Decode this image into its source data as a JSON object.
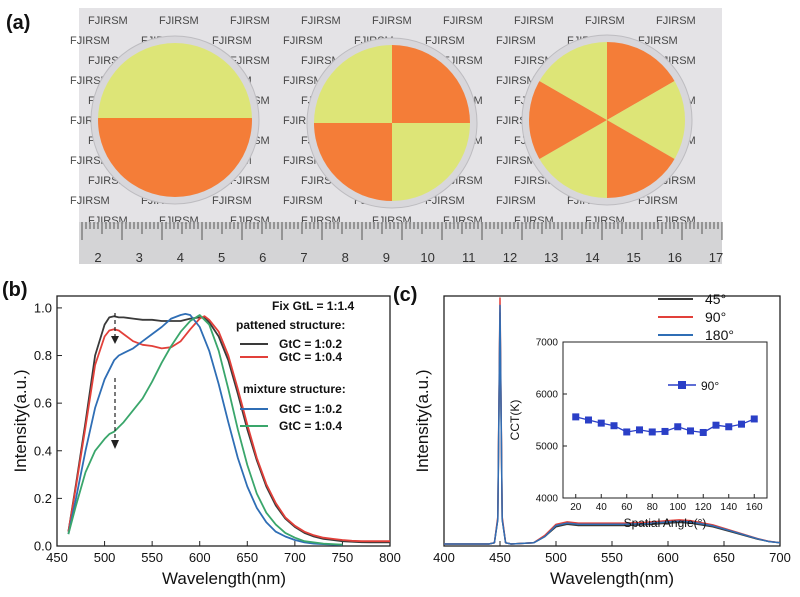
{
  "panel_a": {
    "label": "(a)",
    "watermark_text": "FJIRSM",
    "ruler_numbers": [
      "2",
      "3",
      "4",
      "5",
      "6",
      "7",
      "8",
      "9",
      "10",
      "11",
      "12",
      "13",
      "14",
      "15",
      "16",
      "17"
    ],
    "colors": {
      "yellow": "#dde66f",
      "orange": "#f6752a",
      "paper": "#e4e3e6",
      "ruler": "#d2d1d4"
    }
  },
  "chart_data": [
    {
      "panel_label": "(b)",
      "type": "line",
      "xlabel": "Wavelength(nm)",
      "ylabel": "Intensity(a.u.)",
      "xlim": [
        450,
        800
      ],
      "ylim": [
        0,
        1.05
      ],
      "x_ticks": [
        450,
        500,
        550,
        600,
        650,
        700,
        750,
        800
      ],
      "y_ticks": [
        0.0,
        0.2,
        0.4,
        0.6,
        0.8,
        1.0
      ],
      "x_tick_labels": [
        "450",
        "500",
        "550",
        "600",
        "650",
        "700",
        "750",
        "800"
      ],
      "y_tick_labels": [
        "0.0",
        "0.2",
        "0.4",
        "0.6",
        "0.8",
        "1.0"
      ],
      "legend": {
        "header": "Fix GtL = 1:1.4",
        "group1_title": "pattened structure:",
        "group2_title": "mixture structure:",
        "placement": "top-right"
      },
      "series": [
        {
          "name": "GtC = 1:0.2",
          "group": "pattened structure:",
          "color": "#3a3a3a",
          "x": [
            462,
            470,
            480,
            490,
            500,
            505,
            510,
            515,
            520,
            530,
            540,
            550,
            560,
            570,
            580,
            590,
            600,
            605,
            610,
            620,
            630,
            640,
            650,
            660,
            670,
            680,
            690,
            700,
            710,
            720,
            730,
            740,
            750,
            760,
            770,
            780,
            790,
            800
          ],
          "y": [
            0.06,
            0.26,
            0.52,
            0.8,
            0.93,
            0.96,
            0.965,
            0.96,
            0.96,
            0.955,
            0.95,
            0.95,
            0.945,
            0.945,
            0.945,
            0.955,
            0.96,
            0.96,
            0.94,
            0.88,
            0.78,
            0.64,
            0.49,
            0.36,
            0.25,
            0.17,
            0.115,
            0.08,
            0.055,
            0.04,
            0.03,
            0.025,
            0.02,
            0.018,
            0.016,
            0.015,
            0.015,
            0.015
          ]
        },
        {
          "name": "GtC = 1:0.4",
          "group": "pattened structure:",
          "color": "#e2403a",
          "x": [
            462,
            470,
            480,
            490,
            500,
            505,
            510,
            515,
            520,
            530,
            540,
            550,
            560,
            570,
            580,
            590,
            600,
            605,
            610,
            620,
            630,
            640,
            650,
            660,
            670,
            680,
            690,
            700,
            710,
            720,
            730,
            740,
            750,
            760,
            770,
            780,
            790,
            800
          ],
          "y": [
            0.06,
            0.25,
            0.5,
            0.76,
            0.88,
            0.905,
            0.91,
            0.905,
            0.89,
            0.86,
            0.845,
            0.84,
            0.83,
            0.835,
            0.86,
            0.91,
            0.955,
            0.965,
            0.95,
            0.9,
            0.8,
            0.66,
            0.51,
            0.37,
            0.26,
            0.18,
            0.12,
            0.085,
            0.06,
            0.045,
            0.035,
            0.03,
            0.025,
            0.022,
            0.02,
            0.02,
            0.02,
            0.02
          ]
        },
        {
          "name": "GtC = 1:0.2",
          "group": "mixture structure:",
          "color": "#2f6eb5",
          "x": [
            462,
            470,
            480,
            490,
            500,
            510,
            515,
            520,
            530,
            540,
            550,
            560,
            570,
            580,
            585,
            590,
            600,
            610,
            620,
            630,
            640,
            650,
            660,
            670,
            680,
            690,
            700,
            710,
            720,
            730,
            740,
            750
          ],
          "y": [
            0.05,
            0.2,
            0.4,
            0.58,
            0.7,
            0.78,
            0.8,
            0.81,
            0.83,
            0.86,
            0.89,
            0.92,
            0.955,
            0.97,
            0.975,
            0.97,
            0.92,
            0.82,
            0.68,
            0.52,
            0.37,
            0.25,
            0.16,
            0.1,
            0.06,
            0.04,
            0.025,
            0.015,
            0.01,
            0.008,
            0.006,
            0.005
          ]
        },
        {
          "name": "GtC = 1:0.4",
          "group": "mixture structure:",
          "color": "#3aa66b",
          "x": [
            462,
            470,
            480,
            490,
            500,
            505,
            510,
            515,
            520,
            530,
            540,
            550,
            560,
            570,
            580,
            590,
            600,
            610,
            620,
            630,
            640,
            650,
            660,
            670,
            680,
            690,
            700,
            710,
            720,
            730,
            740,
            750
          ],
          "y": [
            0.05,
            0.17,
            0.31,
            0.4,
            0.45,
            0.47,
            0.48,
            0.5,
            0.52,
            0.57,
            0.62,
            0.69,
            0.77,
            0.84,
            0.9,
            0.945,
            0.97,
            0.93,
            0.82,
            0.66,
            0.49,
            0.34,
            0.22,
            0.14,
            0.09,
            0.055,
            0.035,
            0.02,
            0.015,
            0.01,
            0.008,
            0.006
          ]
        }
      ],
      "annotation": "dashed arrows at 515 nm pointing down"
    },
    {
      "panel_label": "(c)",
      "type": "line",
      "xlabel": "Wavelength(nm)",
      "ylabel": "Intensity(a.u.)",
      "xlim": [
        400,
        700
      ],
      "x_ticks": [
        400,
        450,
        500,
        550,
        600,
        650,
        700
      ],
      "x_tick_labels": [
        "400",
        "450",
        "500",
        "550",
        "600",
        "650",
        "700"
      ],
      "y_ticks_shown": false,
      "legend": {
        "placement": "top-right"
      },
      "series": [
        {
          "name": "45°",
          "color": "#3a3a3a",
          "x": [
            400,
            430,
            440,
            445,
            448,
            450,
            452,
            455,
            460,
            480,
            490,
            500,
            510,
            520,
            540,
            560,
            580,
            600,
            610,
            620,
            640,
            660,
            680,
            690,
            700
          ],
          "y": [
            0,
            0,
            0,
            0.005,
            0.1,
            0.94,
            0.1,
            0.005,
            0,
            0.005,
            0.03,
            0.07,
            0.08,
            0.075,
            0.075,
            0.075,
            0.078,
            0.085,
            0.088,
            0.085,
            0.07,
            0.045,
            0.02,
            0.01,
            0.005
          ]
        },
        {
          "name": "90°",
          "color": "#e2403a",
          "x": [
            400,
            430,
            440,
            445,
            448,
            450,
            452,
            455,
            460,
            480,
            490,
            500,
            510,
            520,
            540,
            560,
            580,
            600,
            610,
            620,
            640,
            660,
            680,
            690,
            700
          ],
          "y": [
            0,
            0,
            0,
            0.005,
            0.11,
            1.0,
            0.11,
            0.005,
            0,
            0.005,
            0.035,
            0.08,
            0.09,
            0.085,
            0.085,
            0.085,
            0.088,
            0.095,
            0.098,
            0.095,
            0.078,
            0.05,
            0.022,
            0.011,
            0.005
          ]
        },
        {
          "name": "180°",
          "color": "#2f6eb5",
          "x": [
            400,
            430,
            440,
            445,
            448,
            450,
            452,
            455,
            460,
            480,
            490,
            500,
            510,
            520,
            540,
            560,
            580,
            600,
            610,
            620,
            640,
            660,
            680,
            690,
            700
          ],
          "y": [
            0,
            0,
            0,
            0.005,
            0.1,
            0.97,
            0.1,
            0.005,
            0,
            0.005,
            0.03,
            0.075,
            0.085,
            0.08,
            0.08,
            0.08,
            0.083,
            0.09,
            0.093,
            0.09,
            0.074,
            0.048,
            0.021,
            0.01,
            0.005
          ]
        }
      ],
      "inset": {
        "type": "line",
        "xlabel": "Spatial Angle(°)",
        "ylabel": "CCT(K)",
        "xlim": [
          10,
          170
        ],
        "ylim": [
          4000,
          7000
        ],
        "x_ticks": [
          20,
          40,
          60,
          80,
          100,
          120,
          140,
          160
        ],
        "y_ticks": [
          4000,
          5000,
          6000,
          7000
        ],
        "x_tick_labels": [
          "20",
          "40",
          "60",
          "80",
          "100",
          "120",
          "140",
          "160"
        ],
        "y_tick_labels": [
          "4000",
          "5000",
          "6000",
          "7000"
        ],
        "series": [
          {
            "name": "90°",
            "color": "#2a3fc7",
            "x": [
              20,
              30,
              40,
              50,
              60,
              70,
              80,
              90,
              100,
              110,
              120,
              130,
              140,
              150,
              160
            ],
            "y": [
              5560,
              5500,
              5440,
              5390,
              5270,
              5310,
              5270,
              5280,
              5370,
              5290,
              5260,
              5400,
              5370,
              5420,
              5520
            ]
          }
        ]
      }
    }
  ]
}
